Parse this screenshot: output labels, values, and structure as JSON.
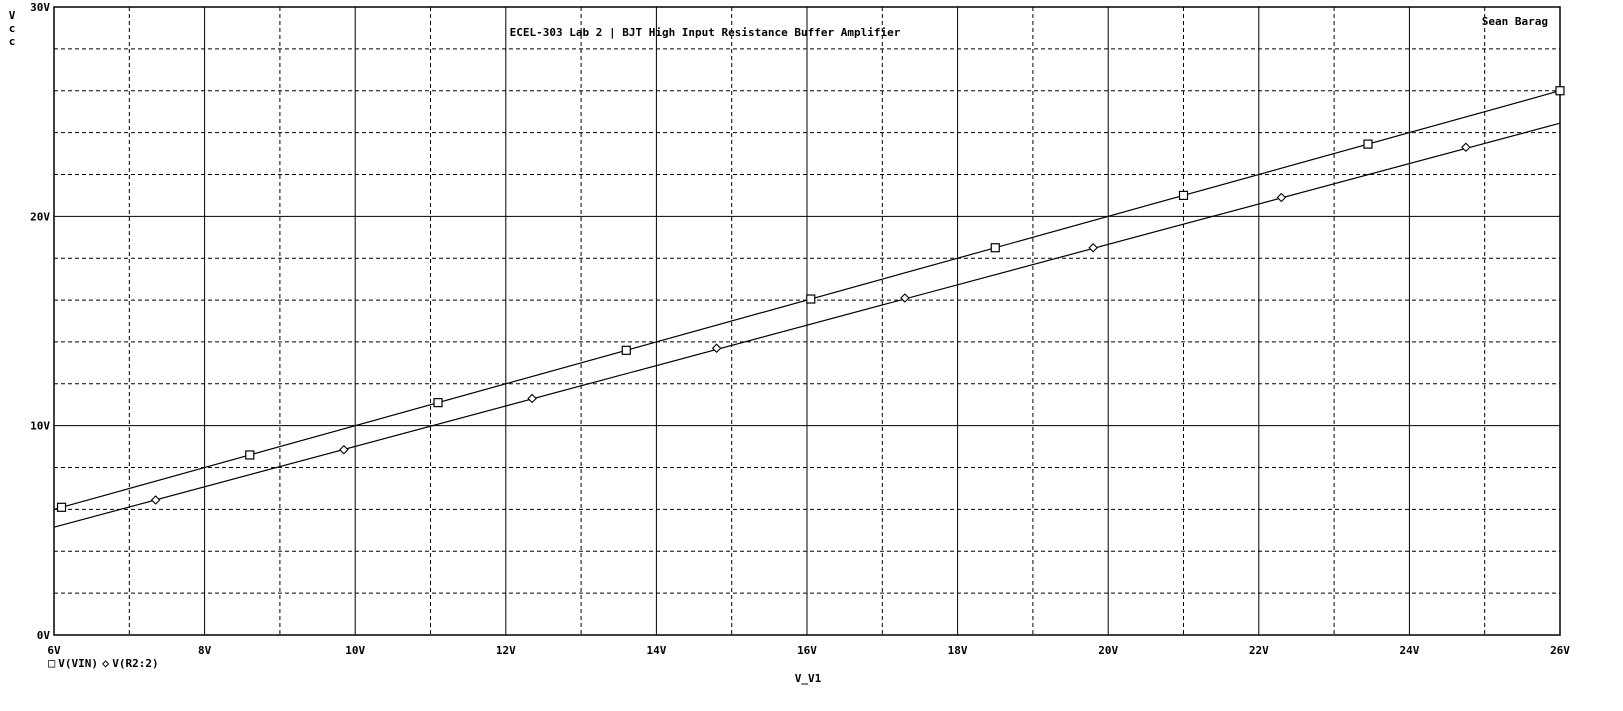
{
  "chart_data": {
    "type": "line",
    "title": "ECEL-303 Lab 2 | BJT High Input Resistance Buffer Amplifier",
    "author": "Sean Barag",
    "xlabel": "V_V1",
    "ylabel": "Vcc",
    "xlim": [
      6,
      26
    ],
    "ylim": [
      0,
      30
    ],
    "x_ticks": [
      "6V",
      "8V",
      "10V",
      "12V",
      "14V",
      "16V",
      "18V",
      "20V",
      "22V",
      "24V",
      "26V"
    ],
    "y_ticks": [
      "0V",
      "10V",
      "20V",
      "30V"
    ],
    "grid": true,
    "series": [
      {
        "name": "V(VIN)",
        "marker": "square",
        "line": {
          "x": [
            6,
            26
          ],
          "y": [
            6.0,
            26.0
          ]
        },
        "markers": {
          "x": [
            6.1,
            8.6,
            11.1,
            13.6,
            16.05,
            18.5,
            21.0,
            23.45,
            26.0
          ],
          "y": [
            6.1,
            8.6,
            11.1,
            13.6,
            16.05,
            18.5,
            21.0,
            23.45,
            26.0
          ]
        }
      },
      {
        "name": "V(R2:2)",
        "marker": "diamond",
        "line": {
          "x": [
            6,
            26
          ],
          "y": [
            5.15,
            24.45
          ]
        },
        "markers": {
          "x": [
            7.35,
            9.85,
            12.35,
            14.8,
            17.3,
            19.8,
            22.3,
            24.75
          ],
          "y": [
            6.45,
            8.85,
            11.3,
            13.7,
            16.1,
            18.5,
            20.9,
            23.3
          ]
        }
      }
    ]
  }
}
